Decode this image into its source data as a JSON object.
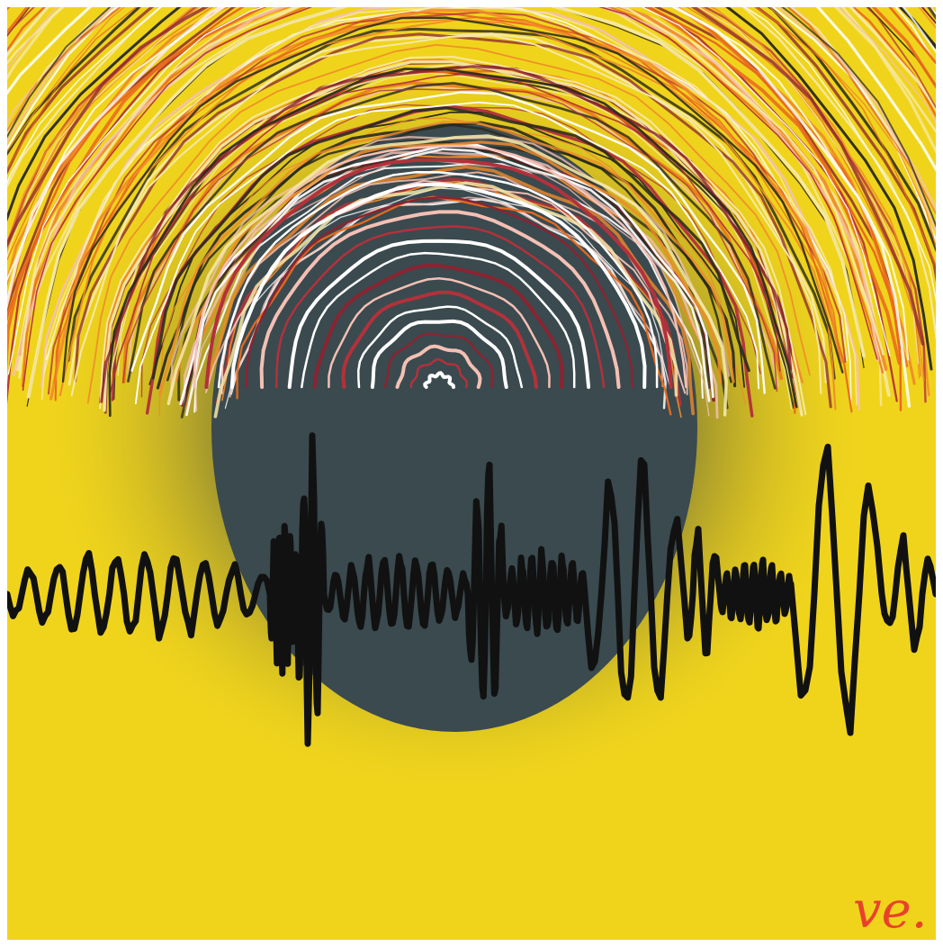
{
  "artwork": {
    "subject": "abstract-painting",
    "signature": "ve.",
    "colors": {
      "background": "#f0d41c",
      "disc": "#3a4a4f",
      "disc_halo": "#5b5e3e",
      "waveform": "#111111",
      "signature": "#e8432a",
      "stroke_palette": [
        "#ffffff",
        "#f6e9a8",
        "#e96a1d",
        "#f08a2a",
        "#b3313b",
        "#8a2431",
        "#2a2a1e",
        "#f4c0b4"
      ]
    }
  }
}
